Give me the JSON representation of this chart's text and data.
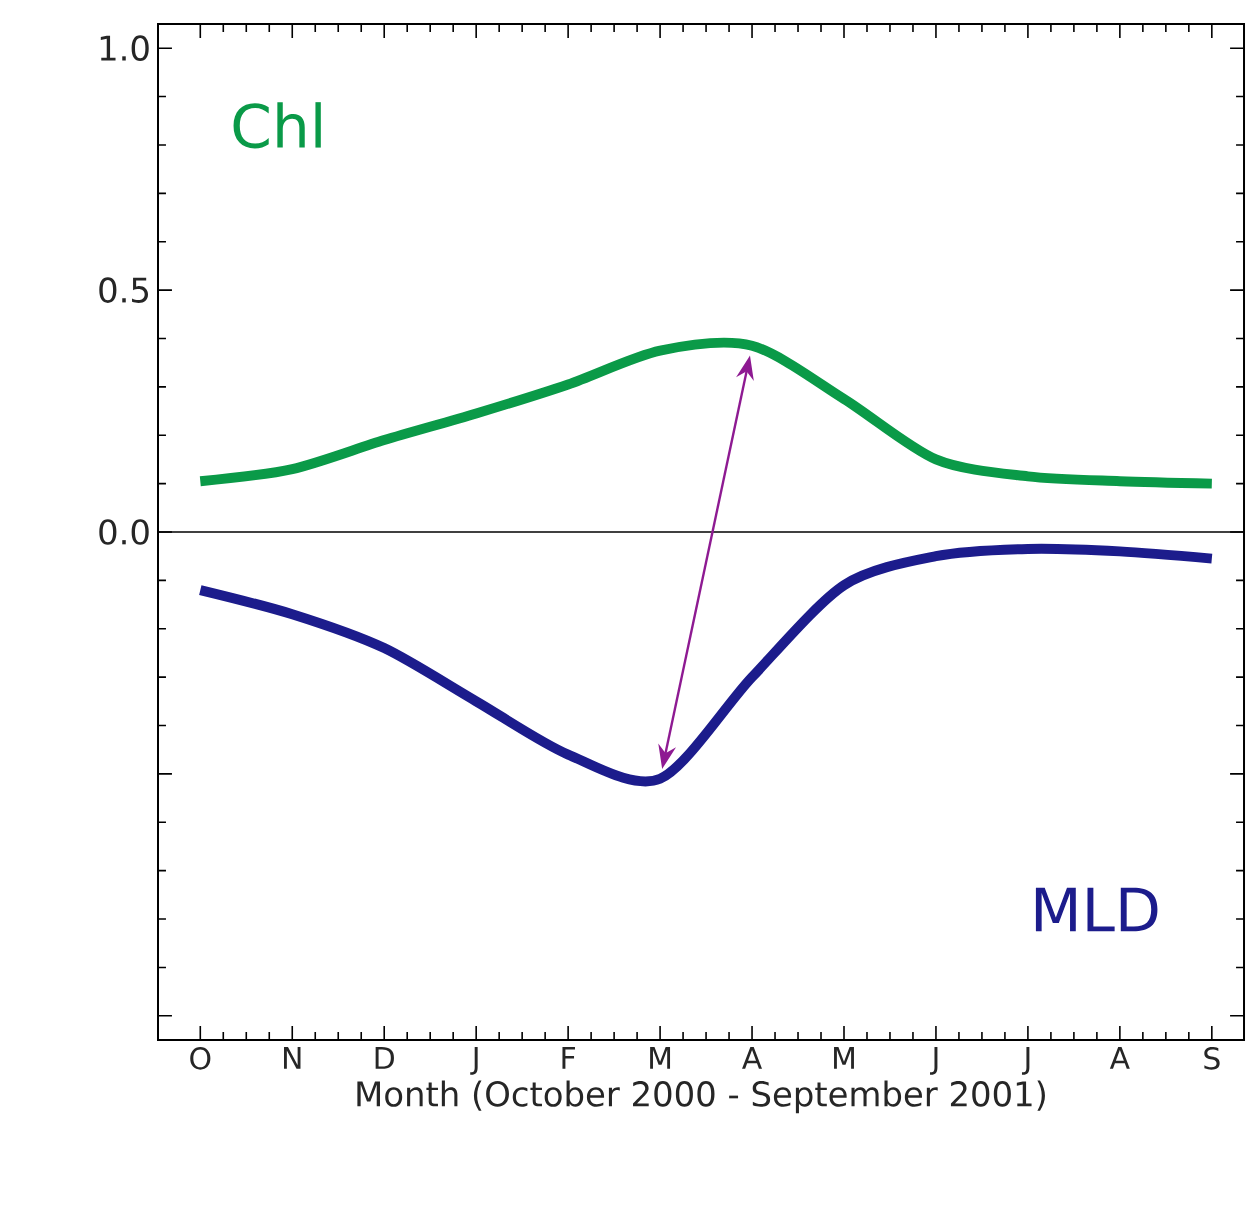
{
  "chart_data": {
    "type": "line",
    "xlabel": "Month (October 2000 - September 2001)",
    "categories": [
      "O",
      "N",
      "D",
      "J",
      "F",
      "M",
      "A",
      "M",
      "J",
      "J",
      "A",
      "S"
    ],
    "ylim": [
      -1.05,
      1.05
    ],
    "yticks": [
      {
        "value": -1.0,
        "label": null
      },
      {
        "value": -0.5,
        "label": null
      },
      {
        "value": 0,
        "label": "0.0"
      },
      0.5,
      {
        "value": 1,
        "label": "1.0"
      }
    ],
    "grid": false,
    "marker": "none",
    "line_style": "solid",
    "ref_lines": [
      {
        "axis": "y",
        "value": 0,
        "color": "#000000"
      }
    ],
    "series": [
      {
        "name": "Chl",
        "color": "#0a9a48",
        "values": [
          0.105,
          0.13,
          0.19,
          0.245,
          0.305,
          0.375,
          0.385,
          0.275,
          0.15,
          0.115,
          0.105,
          0.1
        ]
      },
      {
        "name": "MLD",
        "color": "#1c1c8c",
        "values": [
          -0.12,
          -0.17,
          -0.24,
          -0.35,
          -0.46,
          -0.51,
          -0.3,
          -0.11,
          -0.05,
          -0.035,
          -0.04,
          -0.055
        ]
      }
    ]
  }
}
